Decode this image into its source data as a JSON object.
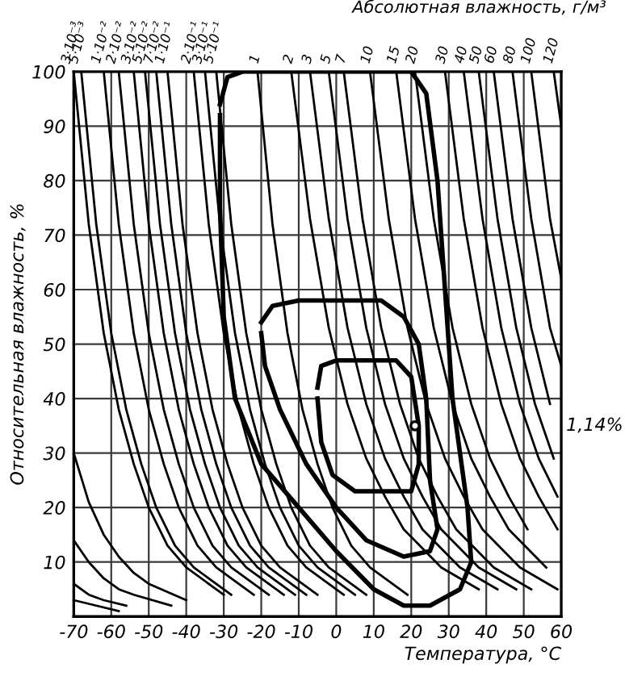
{
  "chart_data": {
    "type": "line",
    "xlabel": "Температура, °C",
    "ylabel": "Относительная влажность, %",
    "x2label": "Абсолютная влажность, г/м³",
    "xlim": [
      -70,
      60
    ],
    "xticks": [
      -70,
      -60,
      -50,
      -40,
      -30,
      -20,
      -10,
      0,
      10,
      20,
      30,
      40,
      50,
      60
    ],
    "ylim": [
      0,
      100
    ],
    "yticks": [
      10,
      20,
      30,
      40,
      50,
      60,
      70,
      80,
      90,
      100
    ],
    "grid": true,
    "legend": false,
    "line_style": "solid",
    "marker": "none",
    "annotations": [
      "1,14%"
    ],
    "series": [
      {
        "color": "#000000",
        "x": [
          -70,
          -66,
          -62,
          -58,
          -54,
          -50,
          -40
        ],
        "values": [
          30,
          21,
          15,
          11,
          8,
          6,
          3
        ]
      },
      {
        "color": "#000000",
        "x": [
          -70,
          -66,
          -62,
          -58,
          -54,
          -44
        ],
        "values": [
          14,
          10,
          7,
          5,
          4,
          2
        ]
      },
      {
        "color": "#000000",
        "x": [
          -70,
          -66,
          -62,
          -56
        ],
        "values": [
          6,
          4,
          3,
          2
        ]
      },
      {
        "color": "#000000",
        "x": [
          -70,
          -64,
          -58
        ],
        "values": [
          3,
          2,
          1
        ]
      },
      {
        "name": "3·10⁻³",
        "color": "#000000",
        "x": [
          -70,
          -66,
          -62,
          -58,
          -54,
          -50,
          -45,
          -40,
          -30
        ],
        "values": [
          100,
          72,
          52,
          38,
          28,
          20,
          13,
          9,
          4
        ]
      },
      {
        "name": "5·10⁻³",
        "color": "#000000",
        "x": [
          -68,
          -64,
          -60,
          -56,
          -52,
          -48,
          -43,
          -38,
          -28
        ],
        "values": [
          100,
          72,
          52,
          38,
          28,
          20,
          13,
          9,
          4
        ]
      },
      {
        "name": "1·10⁻²",
        "color": "#000000",
        "x": [
          -62,
          -58,
          -54,
          -50,
          -46,
          -42,
          -37,
          -32,
          -22
        ],
        "values": [
          100,
          72,
          52,
          38,
          28,
          20,
          13,
          9,
          4
        ]
      },
      {
        "name": "2·10⁻²",
        "color": "#000000",
        "x": [
          -58,
          -54,
          -50,
          -46,
          -42,
          -38,
          -33,
          -28,
          -18
        ],
        "values": [
          100,
          72,
          52,
          38,
          28,
          20,
          13,
          9,
          4
        ]
      },
      {
        "name": "3·10⁻²",
        "color": "#000000",
        "x": [
          -54,
          -50,
          -46,
          -42,
          -38,
          -34,
          -29,
          -24,
          -14
        ],
        "values": [
          100,
          72,
          52,
          38,
          28,
          20,
          13,
          9,
          4
        ]
      },
      {
        "name": "5·10⁻²",
        "color": "#000000",
        "x": [
          -51,
          -47,
          -43,
          -39,
          -35,
          -31,
          -26,
          -21,
          -11
        ],
        "values": [
          100,
          72,
          52,
          38,
          28,
          20,
          13,
          9,
          4
        ]
      },
      {
        "name": "7·10⁻²",
        "color": "#000000",
        "x": [
          -48,
          -44,
          -40,
          -36,
          -32,
          -28,
          -23,
          -18,
          -8
        ],
        "values": [
          100,
          72,
          52,
          38,
          28,
          20,
          13,
          9,
          4
        ]
      },
      {
        "name": "1·10⁻¹",
        "color": "#000000",
        "x": [
          -45,
          -41,
          -37,
          -33,
          -29,
          -25,
          -20,
          -15,
          -5
        ],
        "values": [
          100,
          72,
          52,
          38,
          28,
          20,
          13,
          9,
          4
        ]
      },
      {
        "name": "2·10⁻¹",
        "color": "#000000",
        "x": [
          -38,
          -34,
          -30,
          -26,
          -22,
          -18,
          -13,
          -8,
          2
        ],
        "values": [
          100,
          72,
          52,
          38,
          28,
          20,
          13,
          9,
          4
        ]
      },
      {
        "name": "3·10⁻¹",
        "color": "#000000",
        "x": [
          -35,
          -31,
          -27,
          -23,
          -19,
          -15,
          -10,
          -5,
          5
        ],
        "values": [
          100,
          72,
          52,
          38,
          28,
          20,
          13,
          9,
          4
        ]
      },
      {
        "name": "5·10⁻¹",
        "color": "#000000",
        "x": [
          -32,
          -28,
          -24,
          -20,
          -16,
          -12,
          -7,
          -2,
          8
        ],
        "values": [
          100,
          72,
          52,
          38,
          28,
          20,
          13,
          9,
          4
        ]
      },
      {
        "name": "1",
        "color": "#000000",
        "x": [
          -21,
          -17,
          -13,
          -9,
          -5,
          -1,
          4,
          9,
          19
        ],
        "values": [
          100,
          72,
          52,
          38,
          28,
          20,
          13,
          9,
          4
        ]
      },
      {
        "name": "2",
        "color": "#000000",
        "x": [
          -12,
          -7,
          -2,
          3,
          8,
          13,
          18,
          28,
          38
        ],
        "values": [
          100,
          73,
          53,
          39,
          29,
          22,
          16,
          9,
          5
        ]
      },
      {
        "name": "3",
        "color": "#000000",
        "x": [
          -7,
          -2,
          3,
          8,
          13,
          18,
          23,
          33,
          43
        ],
        "values": [
          100,
          73,
          53,
          39,
          29,
          22,
          16,
          9,
          5
        ]
      },
      {
        "name": "5",
        "color": "#000000",
        "x": [
          -2,
          3,
          8,
          13,
          18,
          23,
          28,
          38,
          48
        ],
        "values": [
          100,
          73,
          53,
          39,
          29,
          22,
          16,
          9,
          5
        ]
      },
      {
        "name": "7",
        "color": "#000000",
        "x": [
          2,
          7,
          12,
          17,
          22,
          27,
          32,
          42,
          52
        ],
        "values": [
          100,
          73,
          53,
          39,
          29,
          22,
          16,
          9,
          5
        ]
      },
      {
        "name": "10",
        "color": "#000000",
        "x": [
          9,
          14,
          19,
          24,
          29,
          34,
          39,
          49,
          59
        ],
        "values": [
          100,
          73,
          53,
          39,
          29,
          22,
          16,
          9,
          5
        ]
      },
      {
        "name": "15",
        "color": "#000000",
        "x": [
          16,
          21,
          26,
          31,
          36,
          41,
          46,
          56
        ],
        "values": [
          100,
          73,
          53,
          39,
          29,
          22,
          16,
          9
        ]
      },
      {
        "name": "20",
        "color": "#000000",
        "x": [
          21,
          26,
          31,
          36,
          41,
          46,
          51
        ],
        "values": [
          100,
          73,
          53,
          39,
          29,
          22,
          16
        ]
      },
      {
        "name": "30",
        "color": "#000000",
        "x": [
          29,
          34,
          39,
          44,
          49,
          54,
          59
        ],
        "values": [
          100,
          73,
          53,
          39,
          29,
          22,
          16
        ]
      },
      {
        "name": "40",
        "color": "#000000",
        "x": [
          34,
          39,
          44,
          49,
          54,
          59
        ],
        "values": [
          100,
          73,
          53,
          39,
          29,
          22
        ]
      },
      {
        "name": "50",
        "color": "#000000",
        "x": [
          38,
          43,
          48,
          53,
          58
        ],
        "values": [
          100,
          73,
          53,
          39,
          29
        ]
      },
      {
        "name": "60",
        "color": "#000000",
        "x": [
          42,
          47,
          52,
          57
        ],
        "values": [
          100,
          73,
          53,
          39
        ]
      },
      {
        "name": "80",
        "color": "#000000",
        "x": [
          47,
          52,
          57,
          60
        ],
        "values": [
          100,
          73,
          53,
          46
        ]
      },
      {
        "name": "100",
        "color": "#000000",
        "x": [
          52,
          57,
          60
        ],
        "values": [
          100,
          73,
          62
        ]
      },
      {
        "name": "120",
        "color": "#000000",
        "x": [
          58,
          60
        ],
        "values": [
          100,
          90
        ]
      },
      {
        "color": "#000000",
        "x": [
          -31,
          -29,
          -25,
          20,
          24,
          27,
          29,
          31,
          35,
          36,
          33,
          25,
          18,
          10,
          0,
          -10,
          -20,
          -27,
          -30,
          -31,
          -31
        ],
        "values": [
          94,
          99,
          100,
          100,
          96,
          80,
          60,
          40,
          20,
          10,
          5,
          2,
          2,
          5,
          12,
          20,
          28,
          40,
          55,
          75,
          92
        ]
      },
      {
        "color": "#000000",
        "x": [
          -20,
          -17,
          -10,
          12,
          18,
          22,
          24,
          25,
          27,
          25,
          18,
          8,
          0,
          -8,
          -15,
          -19,
          -20
        ],
        "values": [
          54,
          57,
          58,
          58,
          55,
          50,
          40,
          25,
          16,
          12,
          11,
          14,
          20,
          28,
          38,
          46,
          52
        ]
      },
      {
        "color": "#000000",
        "x": [
          -5,
          -4,
          0,
          16,
          20,
          22,
          22,
          20,
          5,
          -1,
          -4,
          -5
        ],
        "values": [
          42,
          46,
          47,
          47,
          44,
          35,
          28,
          23,
          23,
          26,
          32,
          40
        ]
      },
      {
        "type": "scatter",
        "marker": "circle",
        "color": "#000000",
        "x": [
          21
        ],
        "values": [
          35
        ]
      }
    ]
  }
}
